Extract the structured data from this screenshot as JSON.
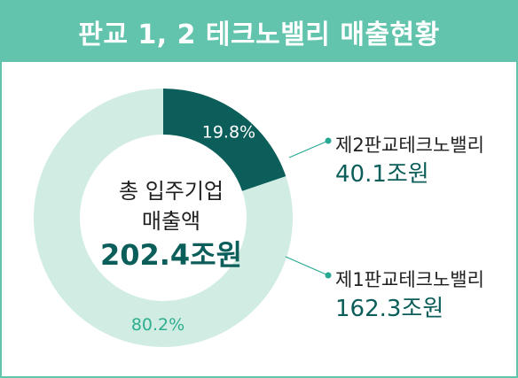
{
  "title": "판교 1, 2 테크노밸리 매출현황",
  "center": {
    "line1": "총 입주기업",
    "line2": "매출액",
    "total": "202.4조원"
  },
  "legend": [
    {
      "name": "제2판교테크노밸리",
      "value": "40.1조원"
    },
    {
      "name": "제1판교테크노밸리",
      "value": "162.3조원"
    }
  ],
  "colors": {
    "title_bar": "#62c4ad",
    "frame": "#62c4ad",
    "slice_dark": "#0b5e5a",
    "slice_light": "#d0ece3",
    "accent_text": "#0b5e5a",
    "dot": "#27a892"
  },
  "chart_data": {
    "type": "pie",
    "donut": true,
    "categories": [
      "제2판교테크노밸리",
      "제1판교테크노밸리"
    ],
    "values": [
      19.8,
      80.2
    ],
    "labels": [
      "19.8%",
      "80.2%"
    ],
    "amounts": [
      40.1,
      162.3
    ],
    "total": 202.4,
    "unit": "조원"
  }
}
